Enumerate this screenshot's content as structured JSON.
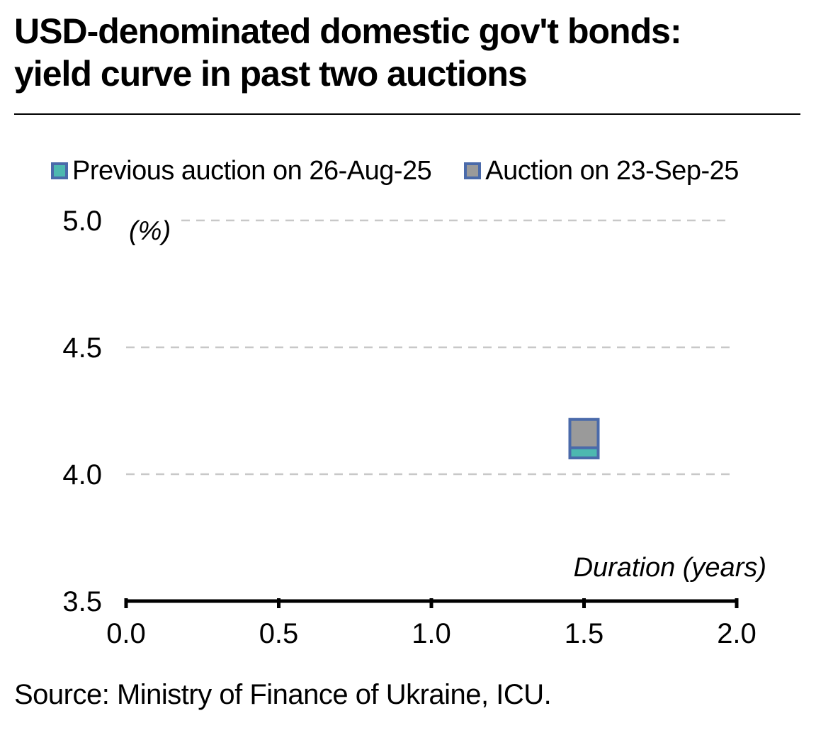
{
  "title_line1": "USD-denominated domestic gov't bonds:",
  "title_line2": "yield curve in past two auctions",
  "source": "Source: Ministry of Finance of Ukraine, ICU.",
  "colors": {
    "previous": "#4db8b0",
    "current": "#9a9a9a",
    "marker_border": "#4a6aaa",
    "grid": "#c8c8c8"
  },
  "chart_data": {
    "type": "scatter",
    "ylabel": "(%)",
    "xlabel": "Duration (years)",
    "xlim": [
      0.0,
      2.0
    ],
    "ylim": [
      3.5,
      5.0
    ],
    "xticks": [
      "0.0",
      "0.5",
      "1.0",
      "1.5",
      "2.0"
    ],
    "yticks": [
      "3.5",
      "4.0",
      "4.5",
      "5.0"
    ],
    "grid": "horizontal dashed",
    "legend_position": "top",
    "series": [
      {
        "name": "Previous auction on 26-Aug-25",
        "points": [
          {
            "x": 1.5,
            "y": 4.12
          }
        ]
      },
      {
        "name": "Auction on 23-Sep-25",
        "points": [
          {
            "x": 1.5,
            "y": 4.16
          }
        ]
      }
    ]
  }
}
